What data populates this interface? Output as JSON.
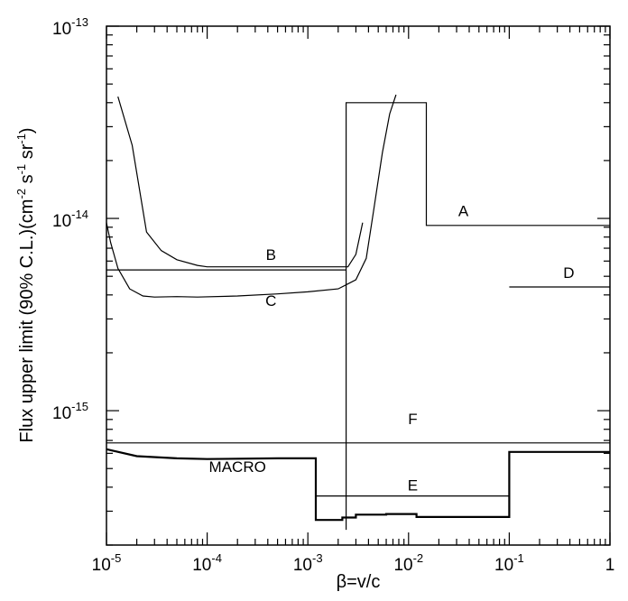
{
  "chart_data": {
    "type": "line",
    "title": "",
    "xlabel": "β=v/c",
    "ylabel_main": "Flux upper limit (90% C.L.)(cm",
    "ylabel_u1": "-2",
    "ylabel_mid1": " s",
    "ylabel_u2": "-1",
    "ylabel_mid2": " sr",
    "ylabel_u3": "-1",
    "ylabel_end": ")",
    "x_scale": "log",
    "y_scale": "log",
    "xlim": [
      1e-05,
      1
    ],
    "ylim": [
      2e-16,
      1e-13
    ],
    "grid": false,
    "x_ticks": [
      {
        "value": 1e-05,
        "base": "10",
        "exp": "-5"
      },
      {
        "value": 0.0001,
        "base": "10",
        "exp": "-4"
      },
      {
        "value": 0.001,
        "base": "10",
        "exp": "-3"
      },
      {
        "value": 0.01,
        "base": "10",
        "exp": "-2"
      },
      {
        "value": 0.1,
        "base": "10",
        "exp": "-1"
      },
      {
        "value": 1,
        "base": "1",
        "exp": ""
      }
    ],
    "y_ticks": [
      {
        "value": 1e-15,
        "base": "10",
        "exp": "-15"
      },
      {
        "value": 1e-14,
        "base": "10",
        "exp": "-14"
      },
      {
        "value": 1e-13,
        "base": "10",
        "exp": "-13"
      }
    ],
    "series": [
      {
        "name": "A",
        "label": "A",
        "label_at": [
          0.035,
          1.03e-14
        ],
        "stroke_width": 1.2,
        "points": [
          [
            0.0024,
            2.4e-16
          ],
          [
            0.0024,
            4e-14
          ],
          [
            0.015,
            4e-14
          ],
          [
            0.015,
            9.2e-15
          ],
          [
            1,
            9.2e-15
          ]
        ]
      },
      {
        "name": "B",
        "label": "B",
        "label_at": [
          0.00043,
          6.1e-15
        ],
        "stroke_width": 1.2,
        "points": [
          [
            1.3e-05,
            4.3e-14
          ],
          [
            1.8e-05,
            2.4e-14
          ],
          [
            2.5e-05,
            8.5e-15
          ],
          [
            3.5e-05,
            6.8e-15
          ],
          [
            5e-05,
            6.1e-15
          ],
          [
            8e-05,
            5.7e-15
          ],
          [
            0.0001,
            5.6e-15
          ],
          [
            0.0005,
            5.6e-15
          ],
          [
            0.001,
            5.6e-15
          ],
          [
            0.0025,
            5.6e-15
          ],
          [
            0.003,
            6.5e-15
          ],
          [
            0.0035,
            9.5e-15
          ]
        ]
      },
      {
        "name": "B-flat",
        "label": "",
        "stroke_width": 1.2,
        "points": [
          [
            1e-05,
            5.4e-15
          ],
          [
            0.0024,
            5.4e-15
          ]
        ]
      },
      {
        "name": "C",
        "label": "C",
        "label_at": [
          0.00043,
          3.5e-15
        ],
        "stroke_width": 1.2,
        "points": [
          [
            1e-05,
            9.5e-15
          ],
          [
            1.1e-05,
            7.5e-15
          ],
          [
            1.3e-05,
            5.5e-15
          ],
          [
            1.7e-05,
            4.3e-15
          ],
          [
            2.3e-05,
            3.95e-15
          ],
          [
            3e-05,
            3.9e-15
          ],
          [
            5e-05,
            3.92e-15
          ],
          [
            8e-05,
            3.9e-15
          ],
          [
            0.0002,
            3.95e-15
          ],
          [
            0.0005,
            4.05e-15
          ],
          [
            0.001,
            4.15e-15
          ],
          [
            0.002,
            4.3e-15
          ],
          [
            0.003,
            4.8e-15
          ],
          [
            0.0038,
            6.2e-15
          ],
          [
            0.0045,
            1.1e-14
          ],
          [
            0.0055,
            2.2e-14
          ],
          [
            0.0065,
            3.5e-14
          ],
          [
            0.0075,
            4.4e-14
          ]
        ]
      },
      {
        "name": "D",
        "label": "D",
        "label_at": [
          0.39,
          4.9e-15
        ],
        "stroke_width": 1.2,
        "points": [
          [
            0.1,
            4.4e-15
          ],
          [
            1,
            4.4e-15
          ]
        ]
      },
      {
        "name": "E",
        "label": "E",
        "label_at": [
          0.011,
          3.85e-16
        ],
        "stroke_width": 1.2,
        "points": [
          [
            0.0012,
            3.6e-16
          ],
          [
            0.1,
            3.6e-16
          ]
        ]
      },
      {
        "name": "F",
        "label": "F",
        "label_at": [
          0.011,
          8.5e-16
        ],
        "stroke_width": 1.2,
        "points": [
          [
            1e-05,
            6.8e-16
          ],
          [
            1,
            6.8e-16
          ]
        ]
      },
      {
        "name": "MACRO",
        "label": "MACRO",
        "label_at": [
          0.0002,
          4.8e-16
        ],
        "stroke_width": 2.2,
        "points": [
          [
            1e-05,
            6.3e-16
          ],
          [
            2e-05,
            5.8e-16
          ],
          [
            5e-05,
            5.65e-16
          ],
          [
            0.0001,
            5.6e-16
          ],
          [
            0.0005,
            5.65e-16
          ],
          [
            0.0012,
            5.65e-16
          ],
          [
            0.0012,
            2.7e-16
          ],
          [
            0.0022,
            2.7e-16
          ],
          [
            0.0022,
            2.78e-16
          ],
          [
            0.003,
            2.78e-16
          ],
          [
            0.003,
            2.88e-16
          ],
          [
            0.006,
            2.88e-16
          ],
          [
            0.006,
            2.9e-16
          ],
          [
            0.012,
            2.9e-16
          ],
          [
            0.012,
            2.8e-16
          ],
          [
            0.1,
            2.8e-16
          ],
          [
            0.1,
            6.1e-16
          ],
          [
            1,
            6.1e-16
          ]
        ]
      }
    ]
  }
}
